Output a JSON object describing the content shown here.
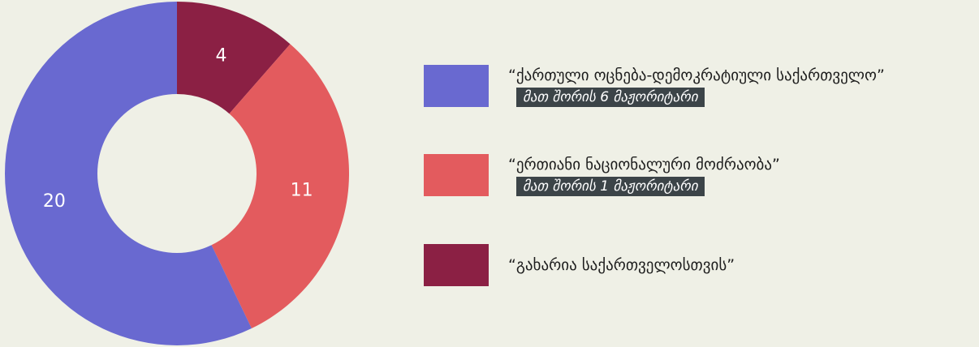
{
  "chart_data": {
    "type": "pie",
    "variant": "donut",
    "series": [
      {
        "name": "“ქართული ოცნება-დემოკრატიული საქართველო”",
        "value": 20,
        "color": "#6969d0",
        "note": "მათ შორის 6 მაჟორიტარი"
      },
      {
        "name": "“ერთიანი ნაციონალური მოძრაობა”",
        "value": 11,
        "color": "#e35b5e",
        "note": "მათ შორის 1 მაჟორიტარი"
      },
      {
        "name": "“გახარია საქართველოსთვის”",
        "value": 4,
        "color": "#8b2044",
        "note": ""
      }
    ],
    "legend_position": "right"
  }
}
